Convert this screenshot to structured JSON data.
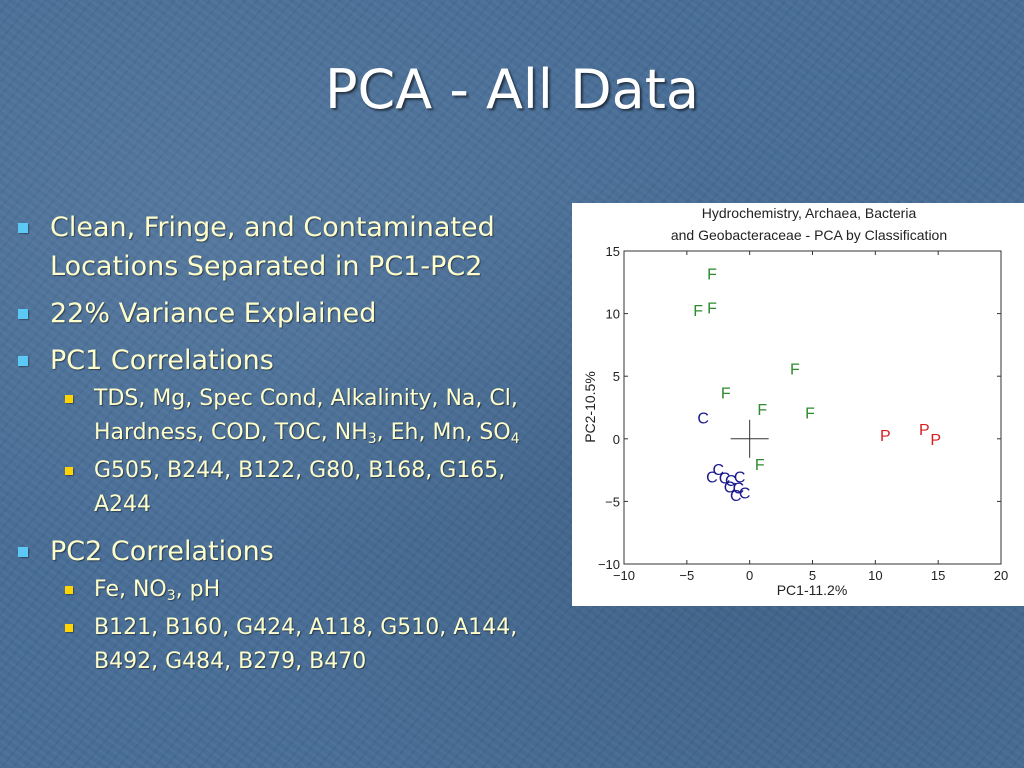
{
  "slide": {
    "title": "PCA - All Data"
  },
  "bullets": {
    "b1": {
      "text": "Clean, Fringe, and Contaminated Locations Separated in PC1-PC2"
    },
    "b2": {
      "text": "22% Variance Explained"
    },
    "b3": {
      "text": "PC1 Correlations",
      "sub1": {
        "p1": "TDS, Mg, Spec Cond, Alkalinity, Na, Cl, Hardness, COD, TOC, NH",
        "s1": "3",
        "p2": ", Eh, Mn, SO",
        "s2": "4"
      },
      "sub2": {
        "text": "G505, B244, B122, G80, B168, G165, A244"
      }
    },
    "b4": {
      "text": "PC2 Correlations",
      "sub1": {
        "p1": "Fe, NO",
        "s1": "3",
        "p2": ", pH"
      },
      "sub2": {
        "text": "B121, B160, G424, A118, G510, A144, B492, G484, B279, B470"
      }
    }
  },
  "chart_data": {
    "type": "scatter",
    "title_lines": [
      "Hydrochemistry, Archaea, Bacteria",
      "and Geobacteraceae - PCA by Classification"
    ],
    "xlabel": "PC1-11.2%",
    "ylabel": "PC2-10.5%",
    "xlim": [
      -10,
      20
    ],
    "ylim": [
      -10,
      15
    ],
    "xticks": [
      -10,
      -5,
      0,
      5,
      10,
      15,
      20
    ],
    "yticks": [
      -10,
      -5,
      0,
      5,
      10,
      15
    ],
    "grid": false,
    "centroid_marker": {
      "x": 0,
      "y": 0,
      "symbol": "+"
    },
    "series": [
      {
        "label": "F",
        "color": "#2e8b2e",
        "points": [
          {
            "x": -3.0,
            "y": 13.2
          },
          {
            "x": -4.1,
            "y": 10.3
          },
          {
            "x": -3.0,
            "y": 10.5
          },
          {
            "x": 3.6,
            "y": 5.6
          },
          {
            "x": -1.9,
            "y": 3.7
          },
          {
            "x": 1.0,
            "y": 2.4
          },
          {
            "x": 4.8,
            "y": 2.1
          },
          {
            "x": 0.8,
            "y": -2.0
          }
        ]
      },
      {
        "label": "C",
        "color": "#1a1a8c",
        "points": [
          {
            "x": -3.7,
            "y": 1.7
          },
          {
            "x": -2.5,
            "y": -2.4
          },
          {
            "x": -3.0,
            "y": -3.0
          },
          {
            "x": -2.0,
            "y": -3.1
          },
          {
            "x": -1.5,
            "y": -3.3
          },
          {
            "x": -0.8,
            "y": -3.0
          },
          {
            "x": -1.6,
            "y": -3.8
          },
          {
            "x": -0.9,
            "y": -3.9
          },
          {
            "x": -1.1,
            "y": -4.5
          },
          {
            "x": -0.4,
            "y": -4.3
          }
        ]
      },
      {
        "label": "P",
        "color": "#d42020",
        "points": [
          {
            "x": 10.8,
            "y": 0.3
          },
          {
            "x": 13.9,
            "y": 0.8
          },
          {
            "x": 14.8,
            "y": 0.0
          }
        ]
      }
    ]
  },
  "colors": {
    "background": "#466c96",
    "title": "#ffffff",
    "body_text": "#ffffcc",
    "bullet_level1": "#5bc8f5",
    "bullet_level2": "#ffd400"
  }
}
